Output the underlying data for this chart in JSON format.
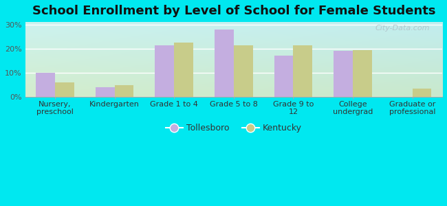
{
  "title": "School Enrollment by Level of School for Female Students",
  "categories": [
    "Nursery,\npreschool",
    "Kindergarten",
    "Grade 1 to 4",
    "Grade 5 to 8",
    "Grade 9 to\n12",
    "College\nundergrad",
    "Graduate or\nprofessional"
  ],
  "tollesboro": [
    10,
    4,
    21.5,
    28,
    17,
    19,
    0
  ],
  "kentucky": [
    6,
    5,
    22.5,
    21.5,
    21.5,
    19.5,
    3.5
  ],
  "tollesboro_color": "#c4aee0",
  "kentucky_color": "#c8cc8a",
  "background_color": "#00e8f0",
  "ylabel_ticks": [
    "0%",
    "10%",
    "20%",
    "30%"
  ],
  "yticks": [
    0,
    10,
    20,
    30
  ],
  "ylim": [
    0,
    31
  ],
  "watermark": "City-Data.com",
  "legend_labels": [
    "Tollesboro",
    "Kentucky"
  ],
  "title_fontsize": 13,
  "tick_fontsize": 8,
  "bar_width": 0.32
}
